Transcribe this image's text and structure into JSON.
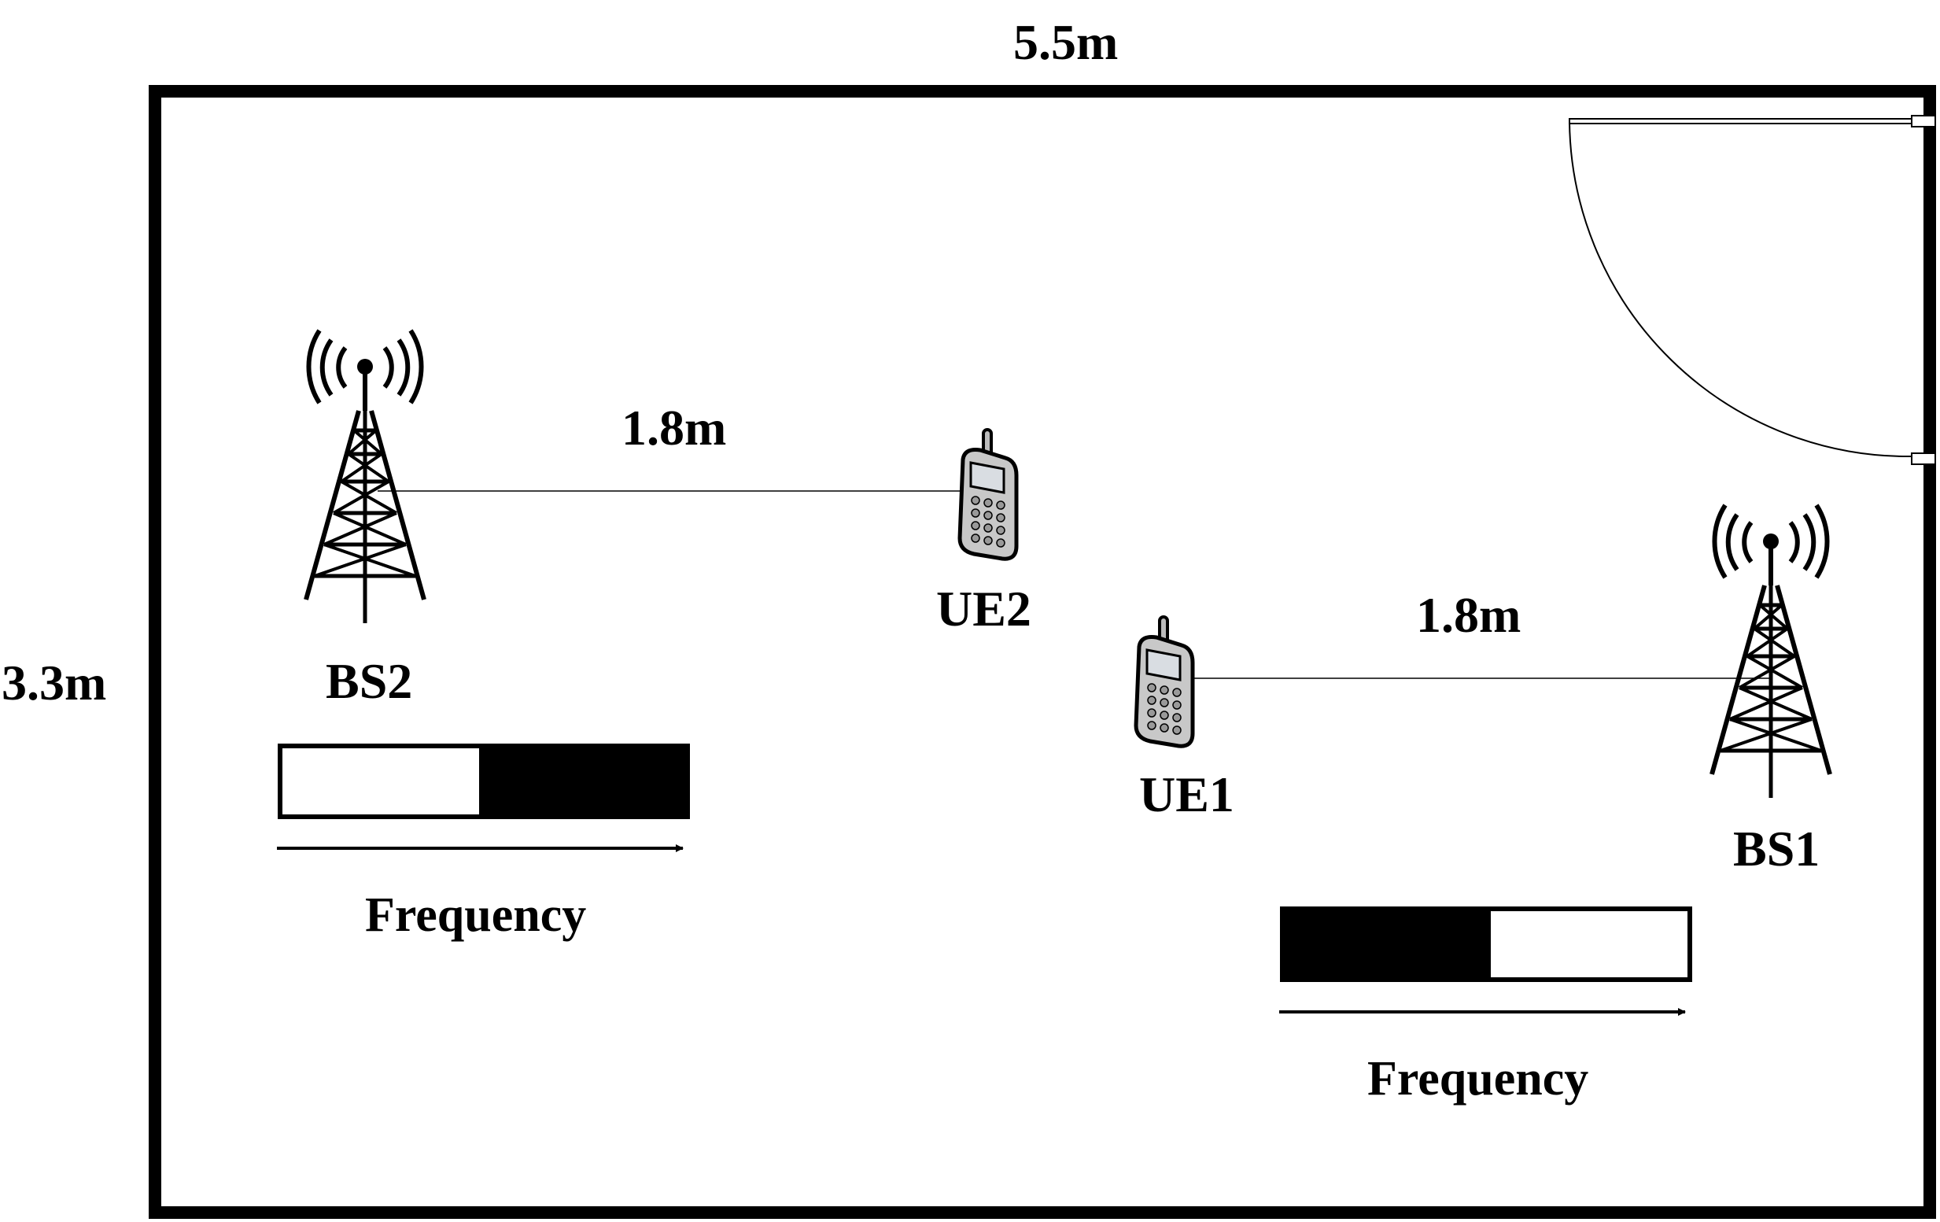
{
  "room": {
    "width_label": "5.5m",
    "height_label": "3.3m"
  },
  "links": [
    {
      "distance_label": "1.8m",
      "from": "BS2",
      "to": "UE2"
    },
    {
      "distance_label": "1.8m",
      "from": "UE1",
      "to": "BS1"
    }
  ],
  "base_stations": [
    {
      "label": "BS2",
      "icon": "cell-tower-icon"
    },
    {
      "label": "BS1",
      "icon": "cell-tower-icon"
    }
  ],
  "user_equipment": [
    {
      "label": "UE2",
      "icon": "mobile-phone-icon"
    },
    {
      "label": "UE1",
      "icon": "mobile-phone-icon"
    }
  ],
  "spectrum": [
    {
      "owner": "BS2",
      "axis_label": "Frequency",
      "occupied_band": "upper half"
    },
    {
      "owner": "BS1",
      "axis_label": "Frequency",
      "occupied_band": "lower half"
    }
  ],
  "colors": {
    "line": "#000000",
    "phone_body": "#c8c8c8",
    "phone_screen": "#d9dde2"
  }
}
